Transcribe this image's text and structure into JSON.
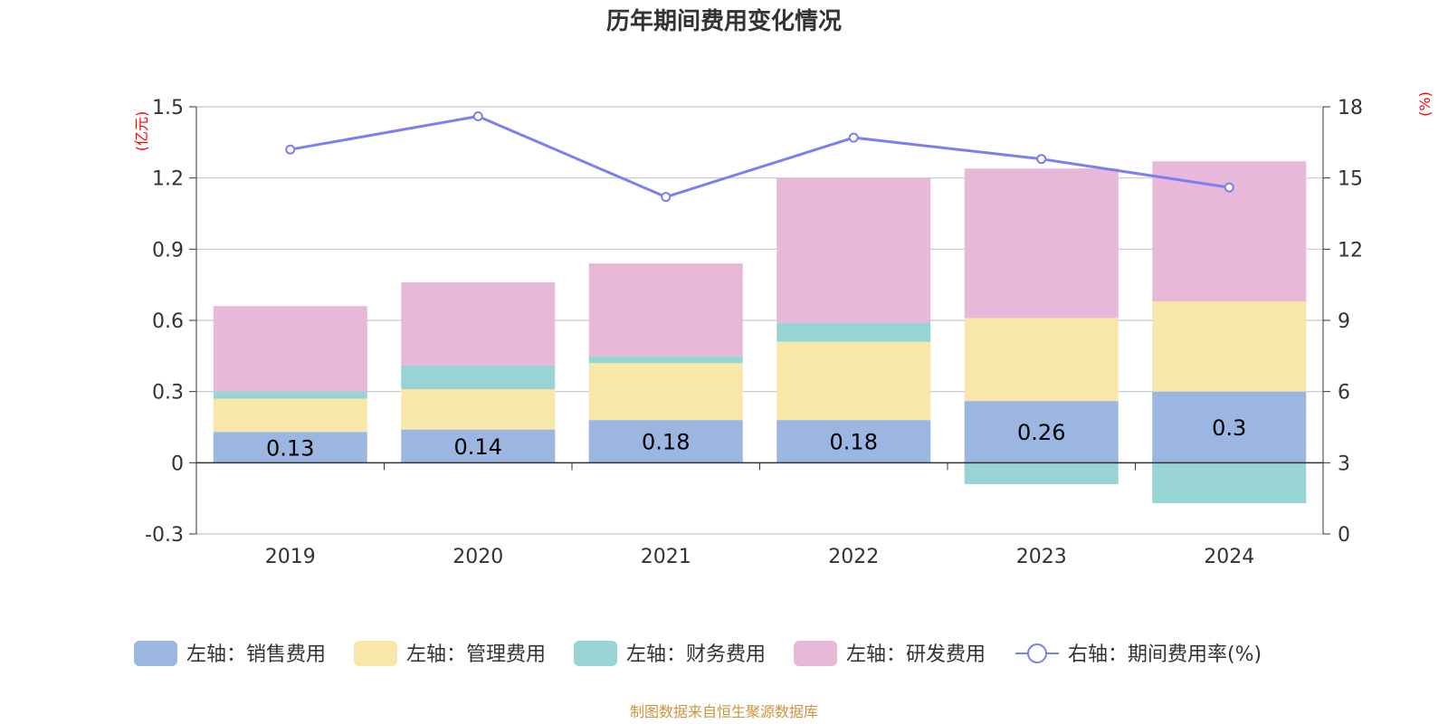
{
  "chart_data": {
    "type": "bar",
    "title": "历年期间费用变化情况",
    "categories": [
      "2019",
      "2020",
      "2021",
      "2022",
      "2023",
      "2024"
    ],
    "left_axis": {
      "unit": "(亿元)",
      "ylim": [
        -0.3,
        1.5
      ],
      "ticks": [
        "1.5",
        "1.2",
        "0.9",
        "0.6",
        "0.3",
        "0",
        "-0.3"
      ]
    },
    "right_axis": {
      "unit": "(%)",
      "ylim": [
        0,
        18
      ],
      "ticks": [
        "18",
        "15",
        "12",
        "9",
        "6",
        "3",
        "0"
      ]
    },
    "stacked": true,
    "series": [
      {
        "name": "左轴：销售费用",
        "type": "bar",
        "axis": "left",
        "color": "#9bb6e0",
        "values": [
          0.13,
          0.14,
          0.18,
          0.18,
          0.26,
          0.3
        ],
        "labels": [
          "0.13",
          "0.14",
          "0.18",
          "0.18",
          "0.26",
          "0.3"
        ]
      },
      {
        "name": "左轴：管理费用",
        "type": "bar",
        "axis": "left",
        "color": "#f8e7a8",
        "values": [
          0.14,
          0.17,
          0.24,
          0.33,
          0.35,
          0.38
        ]
      },
      {
        "name": "左轴：财务费用",
        "type": "bar",
        "axis": "left",
        "color": "#98d4d4",
        "values": [
          0.03,
          0.1,
          0.03,
          0.08,
          -0.09,
          -0.17
        ]
      },
      {
        "name": "左轴：研发费用",
        "type": "bar",
        "axis": "left",
        "color": "#e8b8d8",
        "values": [
          0.36,
          0.35,
          0.39,
          0.61,
          0.63,
          0.59
        ]
      },
      {
        "name": "右轴：期间费用率(%)",
        "type": "line",
        "axis": "right",
        "color": "#7b7fef",
        "values": [
          16.2,
          17.6,
          14.2,
          16.7,
          15.8,
          14.6
        ]
      }
    ],
    "grid": true,
    "legend_position": "bottom"
  },
  "source": "制图数据来自恒生聚源数据库"
}
